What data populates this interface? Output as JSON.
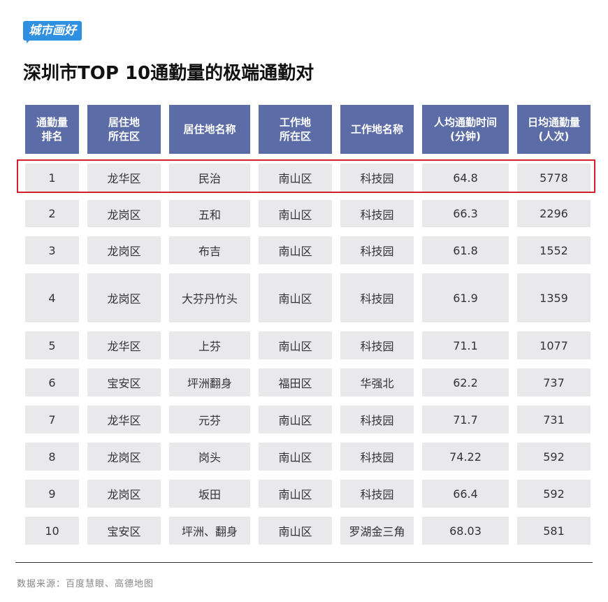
{
  "header": {
    "logo": "城市画好",
    "title": "深圳市TOP 10通勤量的极端通勤对"
  },
  "table": {
    "columns": [
      "通勤量\n排名",
      "居住地\n所在区",
      "居住地名称",
      "工作地\n所在区",
      "工作地名称",
      "人均通勤时间\n(分钟)",
      "日均通勤量\n(人次)"
    ],
    "rows": [
      [
        1,
        "龙华区",
        "民治",
        "南山区",
        "科技园",
        64.8,
        5778
      ],
      [
        2,
        "龙岗区",
        "五和",
        "南山区",
        "科技园",
        66.3,
        2296
      ],
      [
        3,
        "龙岗区",
        "布吉",
        "南山区",
        "科技园",
        61.8,
        1552
      ],
      [
        4,
        "龙岗区",
        "大芬丹竹头",
        "南山区",
        "科技园",
        61.9,
        1359
      ],
      [
        5,
        "龙华区",
        "上芬",
        "南山区",
        "科技园",
        71.1,
        1077
      ],
      [
        6,
        "宝安区",
        "坪洲翻身",
        "福田区",
        "华强北",
        62.2,
        737
      ],
      [
        7,
        "龙华区",
        "元芬",
        "南山区",
        "科技园",
        71.7,
        731
      ],
      [
        8,
        "龙岗区",
        "岗头",
        "南山区",
        "科技园",
        74.22,
        592
      ],
      [
        9,
        "龙岗区",
        "坂田",
        "南山区",
        "科技园",
        66.4,
        592
      ],
      [
        10,
        "宝安区",
        "坪洲、翻身",
        "南山区",
        "罗湖金三角",
        68.03,
        581
      ]
    ]
  },
  "footer": {
    "source": "数据来源：百度慧眼、高德地图"
  }
}
